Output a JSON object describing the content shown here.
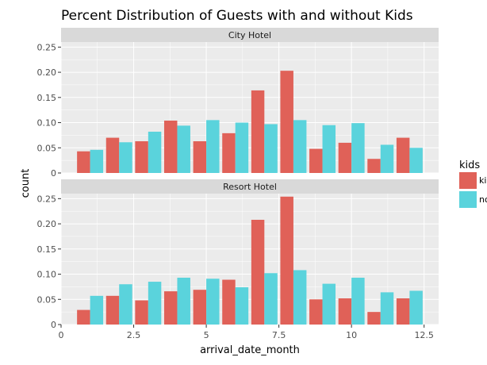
{
  "chart_data": {
    "type": "bar",
    "title": "Percent Distribution of Guests with and without Kids",
    "xlabel": "arrival_date_month",
    "ylabel": "count",
    "xlim": [
      0,
      13
    ],
    "ylim": [
      0,
      0.26
    ],
    "x_ticks": [
      0,
      2.5,
      5,
      7.5,
      10,
      12.5
    ],
    "x_tick_labels": [
      "0",
      "2.5",
      "5",
      "7.5",
      "10",
      "12.5"
    ],
    "y_ticks": [
      0,
      0.05,
      0.1,
      0.15,
      0.2,
      0.25
    ],
    "y_tick_labels": [
      "0",
      "0.05",
      "0.10",
      "0.15",
      "0.20",
      "0.25"
    ],
    "grid": true,
    "legend": {
      "title": "kids",
      "position": "right",
      "labels": [
        "ki",
        "no"
      ]
    },
    "colors": {
      "kids": "#e06158",
      "no_kids": "#5ad3dc",
      "panel_bg": "#ebebeb",
      "strip_bg": "#d9d9d9",
      "grid": "#ffffff"
    },
    "categories": [
      1,
      2,
      3,
      4,
      5,
      6,
      7,
      8,
      9,
      10,
      11,
      12
    ],
    "panels": [
      {
        "label": "City Hotel",
        "series": [
          {
            "values": [
              0.043,
              0.07,
              0.063,
              0.104,
              0.063,
              0.079,
              0.164,
              0.203,
              0.048,
              0.06,
              0.028,
              0.07
            ]
          },
          {
            "values": [
              0.046,
              0.061,
              0.082,
              0.094,
              0.105,
              0.1,
              0.097,
              0.105,
              0.095,
              0.099,
              0.056,
              0.05
            ]
          }
        ]
      },
      {
        "label": "Resort Hotel",
        "series": [
          {
            "values": [
              0.029,
              0.057,
              0.048,
              0.066,
              0.069,
              0.089,
              0.208,
              0.254,
              0.05,
              0.052,
              0.025,
              0.052
            ]
          },
          {
            "values": [
              0.057,
              0.08,
              0.085,
              0.093,
              0.091,
              0.074,
              0.102,
              0.108,
              0.081,
              0.093,
              0.064,
              0.067
            ]
          }
        ]
      }
    ]
  }
}
